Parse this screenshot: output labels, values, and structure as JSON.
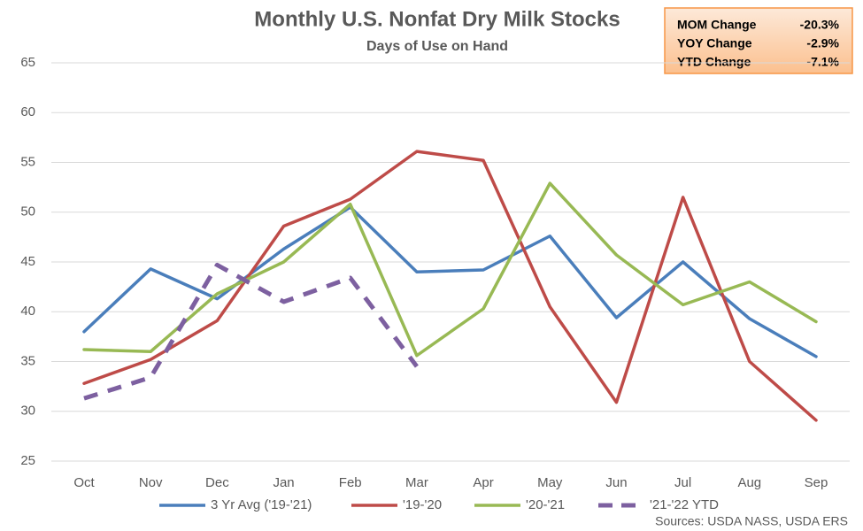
{
  "chart_data": {
    "type": "line",
    "title": "Monthly U.S. Nonfat Dry Milk Stocks",
    "subtitle": "Days of Use on Hand",
    "source": "Sources: USDA NASS, USDA ERS",
    "categories": [
      "Oct",
      "Nov",
      "Dec",
      "Jan",
      "Feb",
      "Mar",
      "Apr",
      "May",
      "Jun",
      "Jul",
      "Aug",
      "Sep"
    ],
    "series": [
      {
        "name": "3 Yr Avg ('19-'21)",
        "color": "#4a7ebb",
        "values": [
          38.0,
          44.3,
          41.3,
          46.3,
          50.5,
          44.0,
          44.2,
          47.6,
          39.4,
          45.0,
          39.3,
          35.5
        ]
      },
      {
        "name": "'19-'20",
        "color": "#be4b48",
        "values": [
          32.8,
          35.2,
          39.1,
          48.6,
          51.3,
          56.1,
          55.2,
          40.5,
          30.9,
          51.5,
          35.0,
          29.1
        ]
      },
      {
        "name": "'20-'21",
        "color": "#98b954",
        "values": [
          36.2,
          36.0,
          41.8,
          45.0,
          50.8,
          35.6,
          40.3,
          52.9,
          45.7,
          40.7,
          43.0,
          39.0
        ]
      },
      {
        "name": "'21-'22 YTD",
        "color": "#7d60a0",
        "dashed": true,
        "values": [
          31.3,
          33.4,
          44.7,
          41.0,
          43.4,
          34.5,
          null,
          null,
          null,
          null,
          null,
          null
        ]
      }
    ],
    "ylim": [
      25,
      65
    ],
    "yticks": [
      25,
      30,
      35,
      40,
      45,
      50,
      55,
      60,
      65
    ],
    "grid": true,
    "stats_box": [
      {
        "label": "MOM Change",
        "value": "-20.3%"
      },
      {
        "label": "YOY Change",
        "value": "-2.9%"
      },
      {
        "label": "YTD Change",
        "value": "-7.1%"
      }
    ]
  }
}
